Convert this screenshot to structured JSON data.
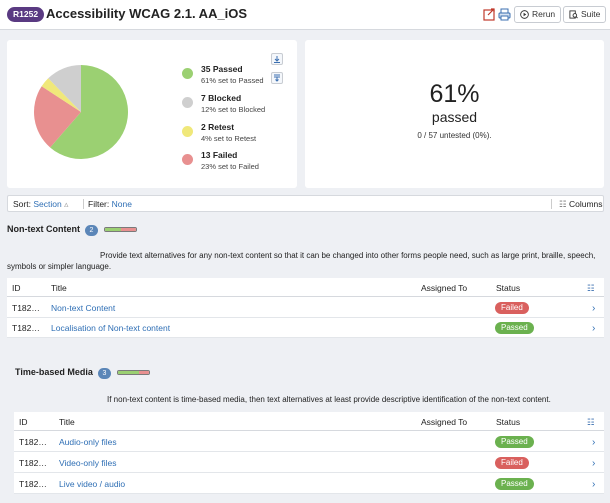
{
  "header": {
    "run_id": "R1252",
    "title": "Accessibility WCAG 2.1. AA_iOS",
    "rerun_label": "Rerun",
    "suite_label": "Suite",
    "icons": [
      "export-icon",
      "print-icon",
      "play-icon",
      "suite-icon"
    ]
  },
  "summary": {
    "chart_data": {
      "type": "pie",
      "slices": [
        {
          "name": "Passed",
          "value": 35,
          "color": "#9bd072"
        },
        {
          "name": "Failed",
          "value": 13,
          "color": "#e89090"
        },
        {
          "name": "Retest",
          "value": 2,
          "color": "#f0e87a"
        },
        {
          "name": "Blocked",
          "value": 7,
          "color": "#cfcfcf"
        }
      ]
    },
    "legend": [
      {
        "count": "35 Passed",
        "desc": "61% set to Passed",
        "color": "#9bd072"
      },
      {
        "count": "7 Blocked",
        "desc": "12% set to Blocked",
        "color": "#cfcfcf"
      },
      {
        "count": "2 Retest",
        "desc": "4% set to Retest",
        "color": "#f0e87a"
      },
      {
        "count": "13 Failed",
        "desc": "23% set to Failed",
        "color": "#e89090"
      }
    ],
    "percent": "61%",
    "percent_word": "passed",
    "untested": "0 / 57 untested (0%)."
  },
  "sortbar": {
    "sort_label": "Sort:",
    "sort_value": "Section",
    "filter_label": "Filter:",
    "filter_value": "None",
    "columns_label": "Columns"
  },
  "table_headers": {
    "id": "ID",
    "title": "Title",
    "assigned": "Assigned To",
    "status": "Status"
  },
  "sections": [
    {
      "title": "Non-text Content",
      "count": "2",
      "desc": "Provide text alternatives for any non-text content so that it can be changed into other forms people need, such as large print, braille, speech, symbols or simpler language.",
      "rows": [
        {
          "id": "T182…",
          "title": "Non-text Content",
          "status": "Failed"
        },
        {
          "id": "T182…",
          "title": "Localisation of Non-text content",
          "status": "Passed"
        }
      ]
    },
    {
      "title": "Time-based Media",
      "count": "3",
      "desc": "If non-text content is time-based media, then text alternatives at least provide descriptive identification of the non-text content.",
      "rows": [
        {
          "id": "T182…",
          "title": "Audio-only files",
          "status": "Passed"
        },
        {
          "id": "T182…",
          "title": "Video-only files",
          "status": "Failed"
        },
        {
          "id": "T182…",
          "title": "Live video / audio",
          "status": "Passed"
        }
      ]
    }
  ],
  "status_colors": {
    "Passed": "#6bb14f",
    "Failed": "#d9605e"
  }
}
